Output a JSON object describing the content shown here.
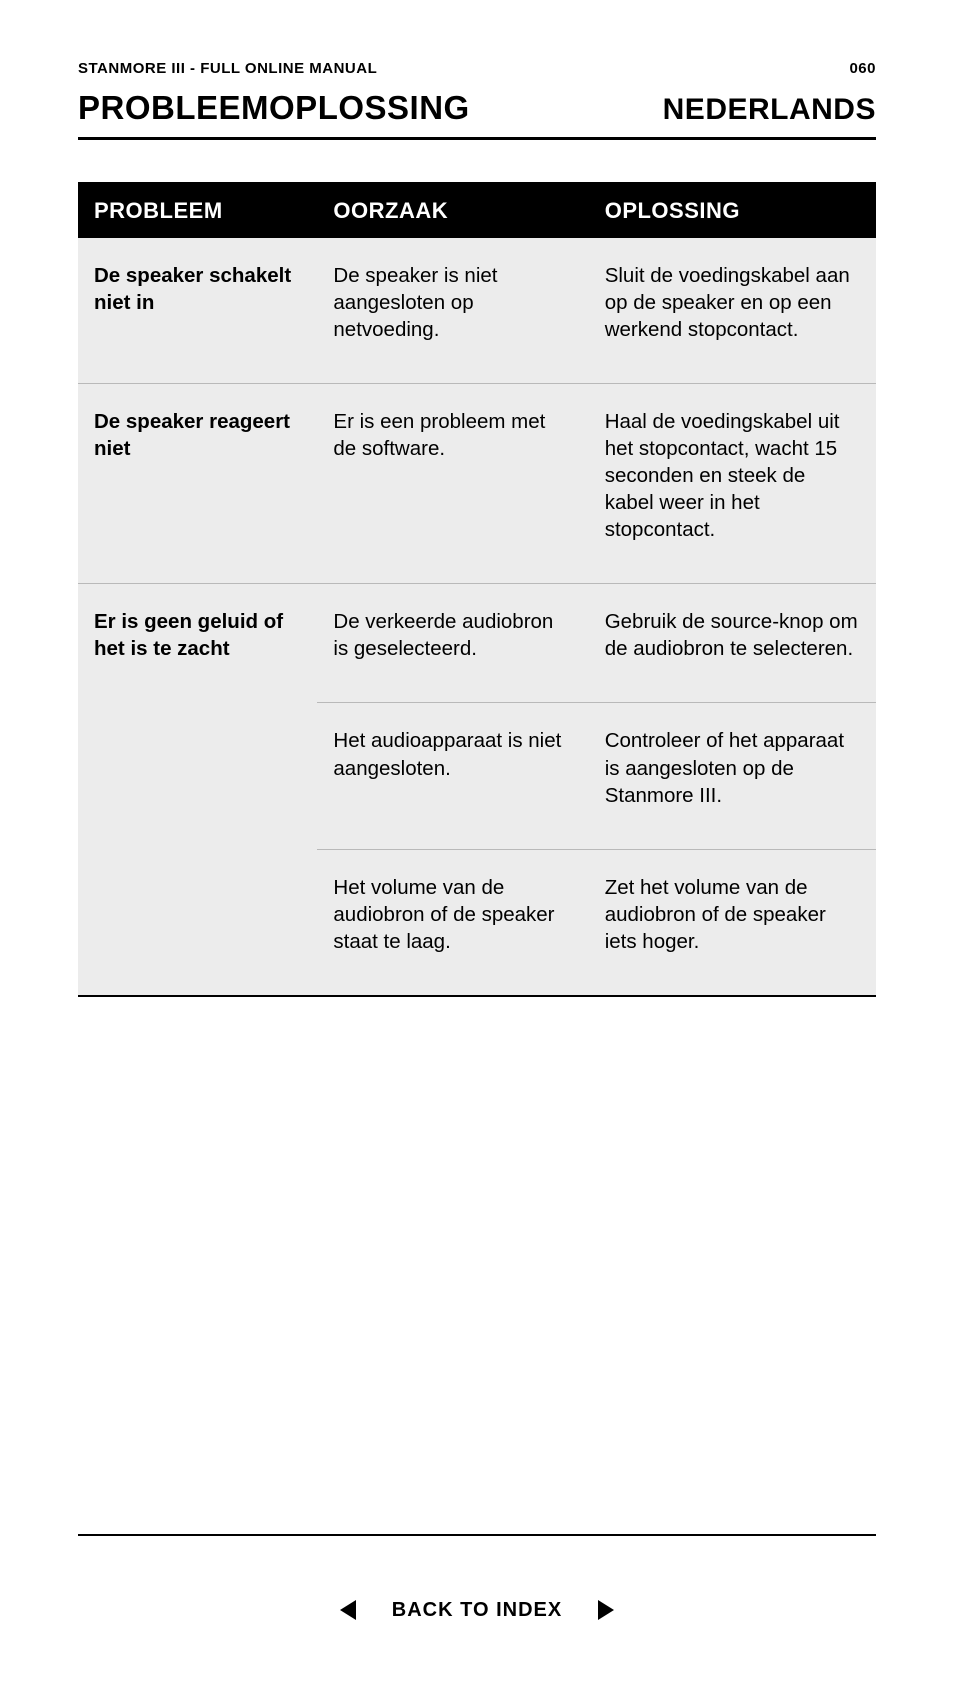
{
  "meta": {
    "doc_title": "STANMORE III - FULL ONLINE MANUAL",
    "page_number": "060"
  },
  "header": {
    "section_title": "PROBLEEMOPLOSSING",
    "language": "NEDERLANDS"
  },
  "table": {
    "type": "table",
    "columns": [
      "PROBLEEM",
      "OORZAAK",
      "OPLOSSING"
    ],
    "col_widths_pct": [
      30,
      34,
      36
    ],
    "header_bg": "#000000",
    "header_fg": "#ffffff",
    "body_bg": "#ececec",
    "border_color": "#000000",
    "divider_color": "#b9b9b9",
    "font_size_header": 22,
    "font_size_body": 20.5,
    "groups": [
      {
        "problem": "De speaker schakelt niet in",
        "entries": [
          {
            "cause": "De speaker is niet aangesloten op netvoeding.",
            "solution": "Sluit de voedingskabel aan op de speaker en op een werkend stopcontact."
          }
        ]
      },
      {
        "problem": "De speaker reageert niet",
        "entries": [
          {
            "cause": "Er is een probleem met de software.",
            "solution": "Haal de voedingskabel uit het stopcontact, wacht 15 seconden en steek de kabel weer in het stopcontact."
          }
        ]
      },
      {
        "problem": "Er is geen geluid of het is te zacht",
        "entries": [
          {
            "cause": "De verkeerde audiobron is geselecteerd.",
            "solution": "Gebruik de source-knop om de audiobron te selecteren."
          },
          {
            "cause": "Het audioapparaat is niet aangesloten.",
            "solution": "Controleer of het apparaat is aangesloten op de Stanmore III."
          },
          {
            "cause": "Het volume van de audiobron of de speaker staat te laag.",
            "solution": "Zet het volume van de audiobron of de speaker iets hoger."
          }
        ]
      }
    ]
  },
  "footer": {
    "back_label": "BACK TO INDEX"
  },
  "colors": {
    "page_bg": "#ffffff",
    "text": "#000000"
  }
}
